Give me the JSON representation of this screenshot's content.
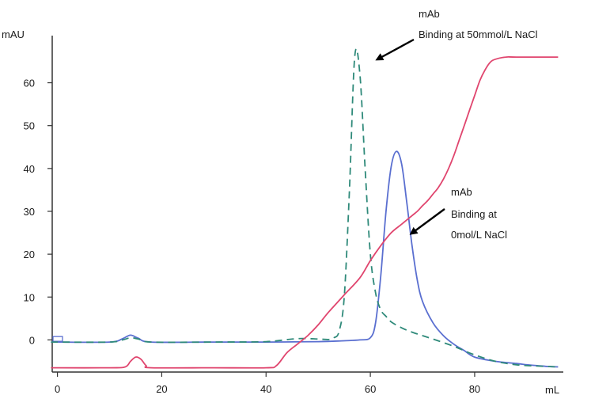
{
  "chart_data": {
    "type": "line",
    "y_unit_label": "mAU",
    "x_unit_label": "mL",
    "xlim": [
      -1,
      97
    ],
    "ylim": [
      -7.5,
      71
    ],
    "x_ticks": [
      "0",
      "20",
      "40",
      "60",
      "80"
    ],
    "x_tick_values": [
      0,
      20,
      40,
      60,
      80
    ],
    "y_ticks": [
      "0",
      "10",
      "20",
      "30",
      "40",
      "50",
      "60"
    ],
    "y_tick_values": [
      0,
      10,
      20,
      30,
      40,
      50,
      60
    ],
    "series": [
      {
        "key": "mab_0mol_nacl",
        "color": "#5a6fd0",
        "dash": "solid",
        "x": [
          -1,
          0,
          10,
          12.5,
          14,
          15.5,
          18,
          30,
          40,
          50,
          55,
          58,
          60,
          61,
          62,
          63,
          64,
          65,
          66,
          67,
          68,
          69,
          70,
          72,
          74,
          76,
          78,
          80,
          84,
          88,
          90,
          92,
          94,
          96
        ],
        "y": [
          -0.5,
          -0.5,
          -0.5,
          0.3,
          1.1,
          0.4,
          -0.5,
          -0.5,
          -0.5,
          -0.4,
          -0.2,
          0,
          0.5,
          4,
          15,
          30,
          40.5,
          44,
          41,
          32,
          22,
          14,
          9,
          4,
          1,
          -1,
          -2.5,
          -4,
          -5,
          -5.5,
          -5.8,
          -6,
          -6.2,
          -6.3
        ]
      },
      {
        "key": "mab_50mmol_nacl",
        "color": "#2f8a7a",
        "dash": "dashed",
        "x": [
          -1,
          0,
          10,
          12.5,
          14,
          15.5,
          18,
          30,
          40,
          46,
          50,
          52,
          53,
          54,
          55,
          56,
          57,
          58,
          59,
          60,
          61,
          62,
          63,
          64,
          66,
          68,
          70,
          72,
          76,
          80,
          84,
          88,
          92,
          96
        ],
        "y": [
          -0.5,
          -0.5,
          -0.5,
          0,
          0.5,
          0.2,
          -0.5,
          -0.5,
          -0.4,
          0.3,
          0.2,
          0.1,
          0.5,
          2,
          10,
          35,
          66,
          62,
          40,
          20,
          11,
          7,
          5.5,
          4.2,
          2.8,
          1.8,
          1.0,
          0.2,
          -1.5,
          -3.5,
          -5,
          -5.8,
          -6.1,
          -6.3
        ]
      },
      {
        "key": "nacl_gradient",
        "color": "#e0456e",
        "dash": "solid",
        "x": [
          -1,
          0,
          10,
          13,
          14,
          15,
          16,
          17,
          18,
          30,
          40,
          42,
          44,
          46,
          48,
          50,
          52,
          55,
          58,
          60,
          62,
          64,
          66,
          68,
          69,
          70,
          71,
          72,
          73,
          74,
          75,
          76,
          77,
          78,
          79,
          80,
          81,
          82,
          83,
          84,
          86,
          88,
          96
        ],
        "y": [
          -6.5,
          -6.5,
          -6.5,
          -6.3,
          -5.0,
          -4.0,
          -4.5,
          -6.0,
          -6.5,
          -6.5,
          -6.5,
          -6.0,
          -3.0,
          -1.0,
          1.0,
          3.5,
          6.5,
          10.5,
          14.5,
          18.5,
          22,
          25,
          27,
          29,
          30,
          31.3,
          32.5,
          34,
          35.5,
          37.5,
          40,
          43,
          46.5,
          50,
          53.5,
          57,
          60.5,
          63,
          64.8,
          65.5,
          66,
          66,
          66
        ]
      }
    ],
    "annotations": [
      {
        "key": "top",
        "lines": [
          "mAb",
          "Binding at 50mmol/L NaCl"
        ]
      },
      {
        "key": "mid",
        "lines": [
          "mAb",
          "Binding at",
          "0mol/L NaCl"
        ]
      }
    ]
  }
}
